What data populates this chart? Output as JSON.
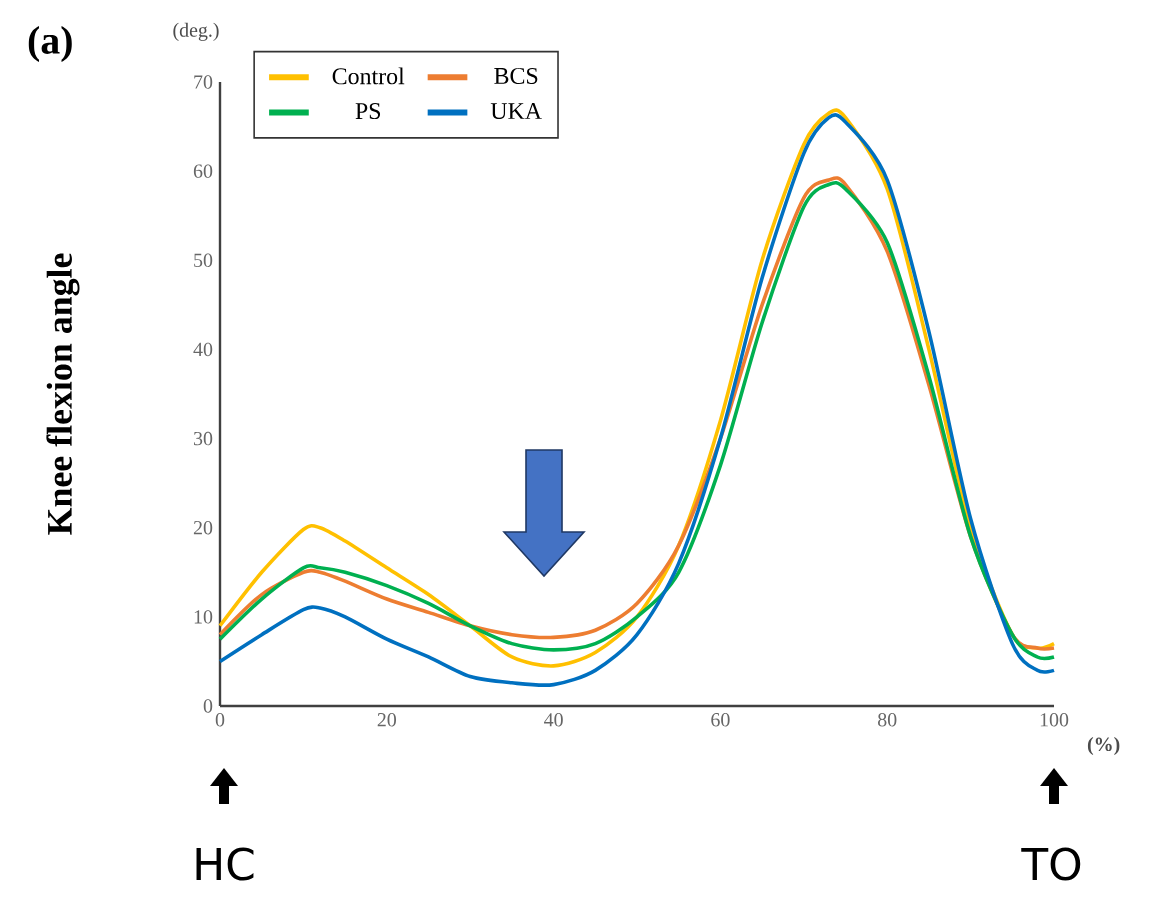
{
  "chart_data": {
    "type": "line",
    "title": "(a)",
    "ylabel": "Knee flexion angle",
    "annotations": [
      "(deg.)",
      "(%)",
      "HC",
      "TO"
    ],
    "x": [
      0,
      5,
      10,
      12,
      15,
      20,
      25,
      30,
      35,
      40,
      45,
      50,
      55,
      60,
      65,
      70,
      73,
      75,
      80,
      85,
      90,
      95,
      98,
      100
    ],
    "series": [
      {
        "name": "Control",
        "color": "#ffc000",
        "values": [
          9,
          15,
          19.8,
          20,
          18.5,
          15.5,
          12.5,
          9,
          5.5,
          4.5,
          6,
          10,
          18,
          32,
          50,
          63,
          66.5,
          66,
          58,
          40,
          20,
          8,
          6.5,
          7
        ]
      },
      {
        "name": "BCS",
        "color": "#ed7d31",
        "values": [
          8,
          12.5,
          15,
          15,
          14,
          12,
          10.5,
          9,
          8,
          7.7,
          8.5,
          11.5,
          18,
          30,
          45,
          57,
          59,
          58.5,
          51,
          36,
          19,
          8,
          6.5,
          6.5
        ]
      },
      {
        "name": "PS",
        "color": "#00b050",
        "values": [
          7.5,
          12,
          15.5,
          15.5,
          15,
          13.5,
          11.5,
          9,
          7,
          6.3,
          7,
          10,
          15,
          27,
          43,
          56,
          58.5,
          58,
          52,
          37,
          19,
          8,
          5.5,
          5.5
        ]
      },
      {
        "name": "UKA",
        "color": "#0070c0",
        "values": [
          5,
          8,
          10.8,
          11,
          10,
          7.5,
          5.5,
          3.3,
          2.6,
          2.4,
          4,
          8,
          16,
          30,
          48,
          62,
          66,
          65.5,
          59,
          42,
          21,
          7,
          4,
          4
        ]
      }
    ],
    "xlim": [
      0,
      100
    ],
    "ylim": [
      0,
      70
    ],
    "xticks": [
      0,
      20,
      40,
      60,
      80,
      100
    ],
    "yticks": [
      0,
      10,
      20,
      30,
      40,
      50,
      60,
      70
    ],
    "grid": false,
    "legend": "top left",
    "marker": "none",
    "line_style": "solid"
  }
}
